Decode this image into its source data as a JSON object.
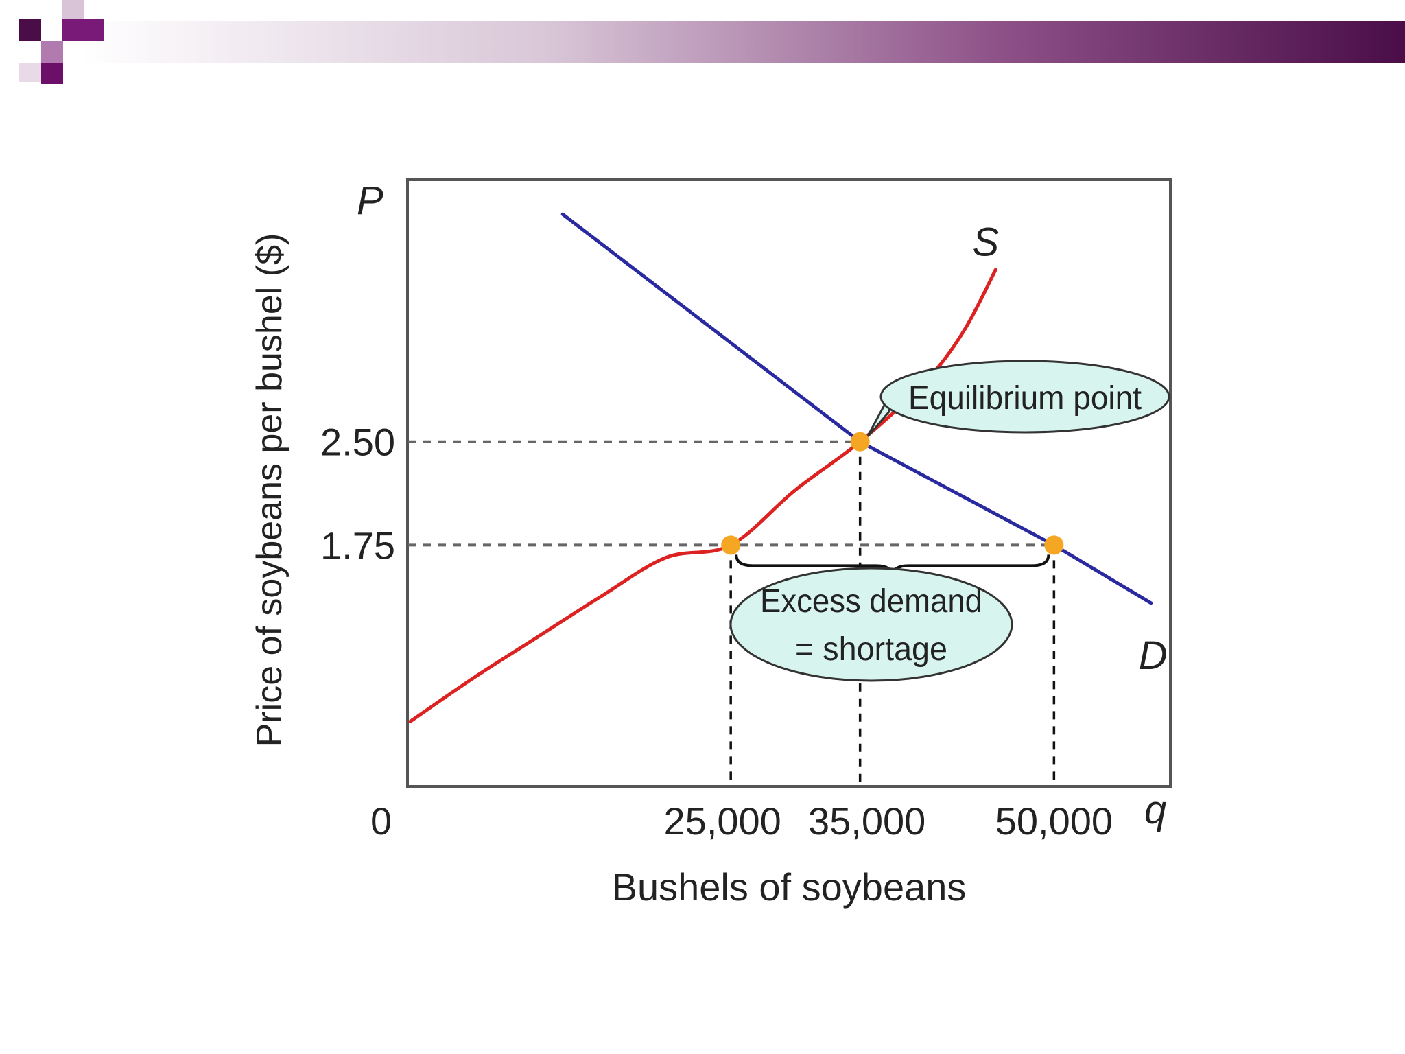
{
  "chart_data": {
    "type": "line",
    "xlabel": "Bushels of soybeans",
    "ylabel": "Price of soybeans per bushel ($)",
    "x_axis_symbol": "q",
    "y_axis_symbol": "P",
    "origin_label": "0",
    "x_ticks": [
      {
        "value": 25000,
        "label": "25,000"
      },
      {
        "value": 35000,
        "label": "35,000"
      },
      {
        "value": 50000,
        "label": "50,000"
      }
    ],
    "y_ticks": [
      {
        "value": 1.75,
        "label": "1.75"
      },
      {
        "value": 2.5,
        "label": "2.50"
      }
    ],
    "xlim": [
      0,
      59000
    ],
    "ylim": [
      0,
      4.4
    ],
    "series": [
      {
        "name": "S",
        "color": "#dd2222",
        "points": [
          [
            200,
            0.47
          ],
          [
            5000,
            0.78
          ],
          [
            10000,
            1.08
          ],
          [
            15000,
            1.38
          ],
          [
            20000,
            1.66
          ],
          [
            25000,
            1.75
          ],
          [
            30000,
            2.15
          ],
          [
            35000,
            2.5
          ],
          [
            40000,
            2.93
          ],
          [
            43000,
            3.3
          ],
          [
            45500,
            3.75
          ]
        ]
      },
      {
        "name": "D",
        "color": "#2a2aa0",
        "points": [
          [
            12000,
            4.15
          ],
          [
            35000,
            2.5
          ],
          [
            50000,
            1.75
          ],
          [
            57500,
            1.33
          ]
        ]
      }
    ],
    "points": [
      {
        "x": 35000,
        "y": 2.5,
        "color": "#f5a623"
      },
      {
        "x": 25000,
        "y": 1.75,
        "color": "#f5a623"
      },
      {
        "x": 50000,
        "y": 1.75,
        "color": "#f5a623"
      }
    ],
    "annotations": [
      {
        "id": "equilibrium",
        "lines": [
          "Equilibrium point"
        ],
        "fill": "#d7f5ee"
      },
      {
        "id": "excess",
        "lines": [
          "Excess demand",
          "= shortage"
        ],
        "fill": "#d7f5ee"
      }
    ]
  }
}
